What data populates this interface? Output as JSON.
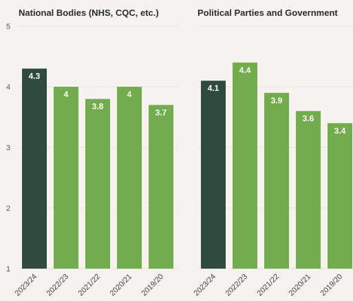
{
  "chart_data": [
    {
      "type": "bar",
      "title": "National Bodies (NHS, CQC, etc.)",
      "categories": [
        "2023/24",
        "2022/23",
        "2021/22",
        "2020/21",
        "2019/20"
      ],
      "values": [
        4.3,
        4,
        3.8,
        4,
        3.7
      ],
      "value_labels": [
        "4.3",
        "4",
        "3.8",
        "4",
        "3.7"
      ],
      "ylim": [
        1,
        5
      ],
      "yticks": [
        "1",
        "2",
        "3",
        "4",
        "5"
      ],
      "grid": true,
      "colors": {
        "highlight": "#2f4a3e",
        "default": "#72ac4d"
      }
    },
    {
      "type": "bar",
      "title": "Political Parties and Government",
      "categories": [
        "2023/24",
        "2022/23",
        "2021/22",
        "2020/21",
        "2019/20"
      ],
      "values": [
        4.1,
        4.4,
        3.9,
        3.6,
        3.4
      ],
      "value_labels": [
        "4.1",
        "4.4",
        "3.9",
        "3.6",
        "3.4"
      ],
      "ylim": [
        1,
        5
      ],
      "yticks": [],
      "grid": true,
      "colors": {
        "highlight": "#2f4a3e",
        "default": "#72ac4d"
      }
    }
  ]
}
